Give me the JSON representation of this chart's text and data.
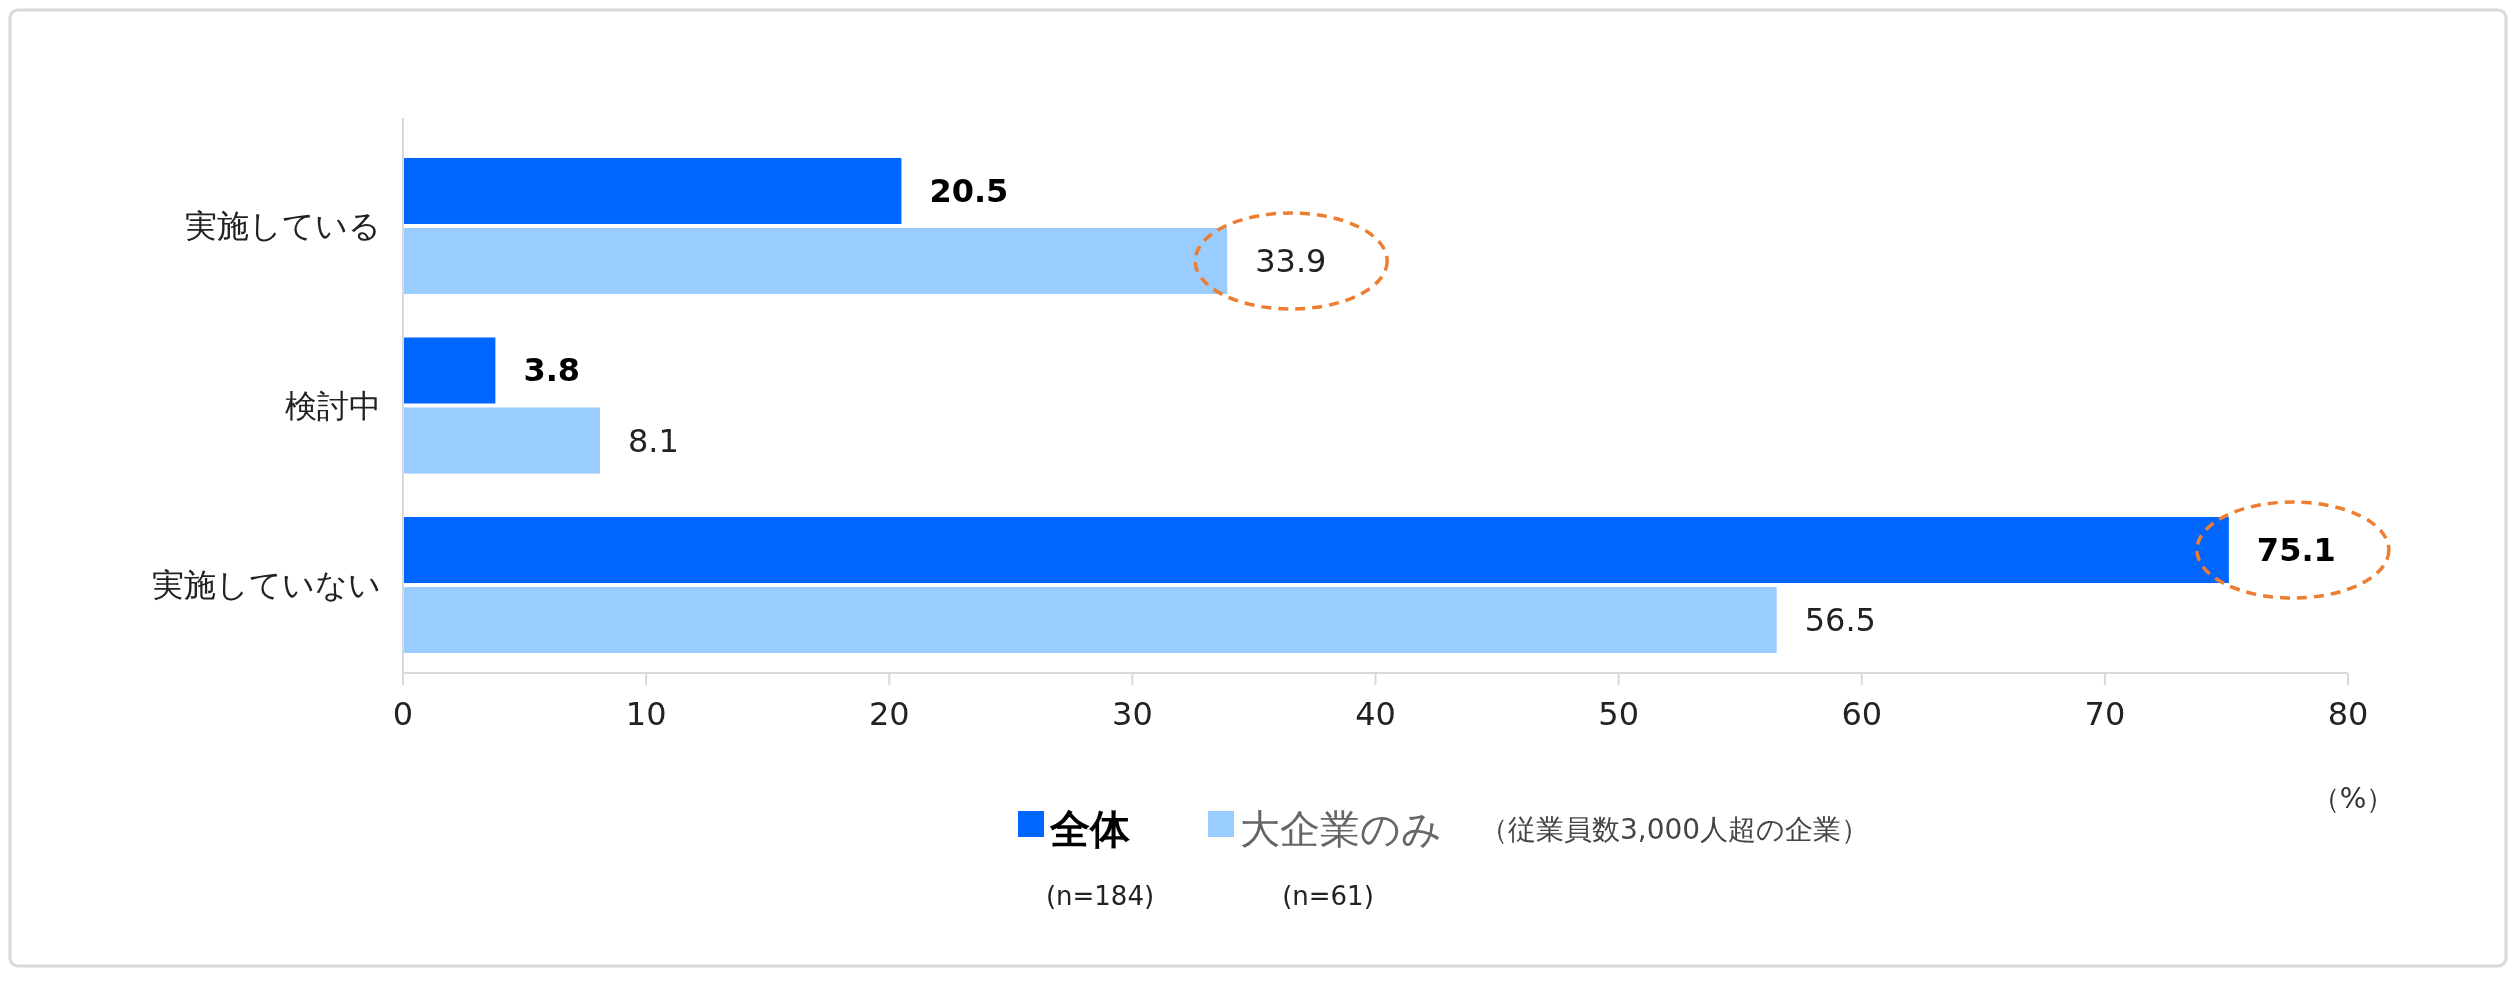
{
  "chart_data": {
    "type": "bar",
    "orientation": "horizontal",
    "categories": [
      "実施している",
      "検討中",
      "実施していない"
    ],
    "series": [
      {
        "name": "全体",
        "color": "#0066ff",
        "values": [
          20.5,
          3.8,
          75.1
        ]
      },
      {
        "name": "大企業のみ",
        "color": "#99ccff",
        "values": [
          33.9,
          8.1,
          56.5
        ]
      }
    ],
    "xlim": [
      0,
      80
    ],
    "xticks": [
      0,
      10,
      20,
      30,
      40,
      50,
      60,
      70,
      80
    ],
    "xlabel": "（%）",
    "data_labels": true,
    "legend": "bottom",
    "annotations": [
      "（従業員数3,000人超の企業）",
      "(n=184)",
      "(n=61)"
    ]
  }
}
